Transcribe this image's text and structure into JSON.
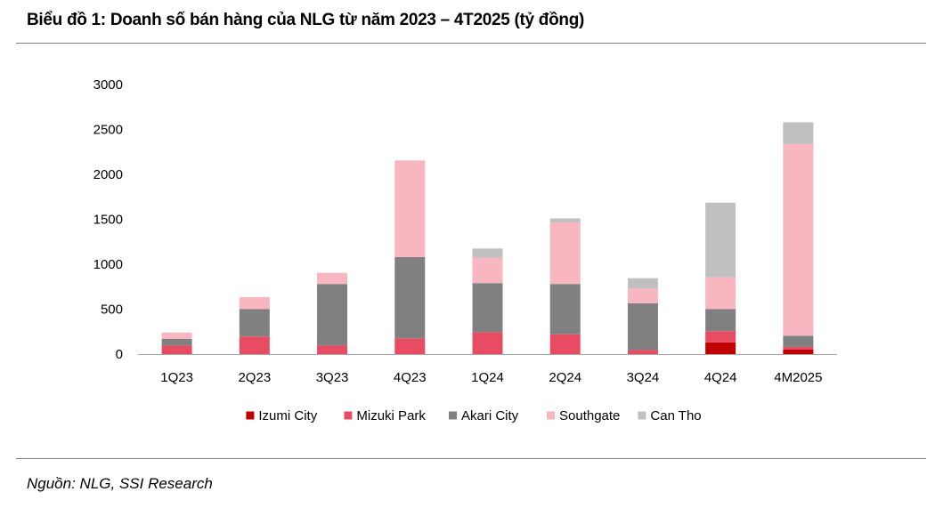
{
  "header": {
    "title": "Biểu đồ 1: Doanh số bán hàng của NLG từ năm 2023 – 4T2025 (tỷ đồng)"
  },
  "footer": {
    "source": "Nguồn: NLG, SSI Research"
  },
  "chart_data": {
    "type": "bar",
    "stacked": true,
    "title": "",
    "xlabel": "",
    "ylabel": "",
    "categories": [
      "1Q23",
      "2Q23",
      "3Q23",
      "4Q23",
      "1Q24",
      "2Q24",
      "3Q24",
      "4Q24",
      "4M2025"
    ],
    "ylim": [
      0,
      3000
    ],
    "yticks": [
      0,
      500,
      1000,
      1500,
      2000,
      2500,
      3000
    ],
    "grid": false,
    "legend_position": "bottom",
    "series": [
      {
        "name": "Izumi City",
        "color": "#c00000",
        "values": [
          0,
          0,
          0,
          0,
          0,
          0,
          0,
          130,
          50
        ]
      },
      {
        "name": "Mizuki Park",
        "color": "#e84c63",
        "values": [
          95,
          195,
          95,
          175,
          245,
          220,
          45,
          125,
          30
        ]
      },
      {
        "name": "Akari City",
        "color": "#808080",
        "values": [
          75,
          305,
          685,
          905,
          545,
          560,
          520,
          245,
          125
        ]
      },
      {
        "name": "Southgate",
        "color": "#f8b6c0",
        "values": [
          70,
          135,
          125,
          1075,
          285,
          685,
          165,
          355,
          2135
        ]
      },
      {
        "name": "Can Tho",
        "color": "#c0c0c0",
        "values": [
          0,
          0,
          0,
          0,
          100,
          45,
          115,
          830,
          240
        ]
      }
    ]
  }
}
